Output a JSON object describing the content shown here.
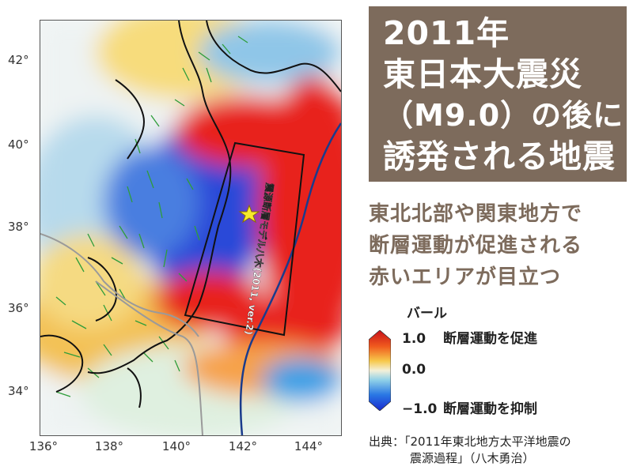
{
  "title_lines": [
    "2011年",
    "東日本大震災",
    "（M9.0）の後に",
    "誘発される地震"
  ],
  "subtitle_lines": [
    "東北北部や関東地方で",
    "断層運動が促進される",
    "赤いエリアが目立つ"
  ],
  "map": {
    "lat_ticks": [
      "42°",
      "40°",
      "38°",
      "36°",
      "34°"
    ],
    "lon_ticks": [
      "136°",
      "138°",
      "140°",
      "142°",
      "144°"
    ],
    "lon_range": [
      135.9,
      145.0
    ],
    "lat_range": [
      33.1,
      43.1
    ],
    "epicenter": {
      "lon": 142.4,
      "lat": 38.3
    },
    "fault_model_label": "震源断層モデル八木(2011, ver.2)",
    "colors": {
      "promote": "#e8231c",
      "suppress": "#1f3fd6",
      "neutral": "#f4f0d8",
      "fault_lines": "#2e9d3a",
      "coast": "#111111",
      "plate_boundary": "#1a3b8c"
    }
  },
  "legend": {
    "unit": "バール",
    "max_value": "1.0",
    "max_label": "断層運動を促進",
    "mid_value": "0.0",
    "min_value": "−1.0",
    "min_label": "断層運動を抑制"
  },
  "source_lines": [
    "出典：「2011年東北地方太平洋地震の",
    "震源過程」（八木勇治）"
  ]
}
